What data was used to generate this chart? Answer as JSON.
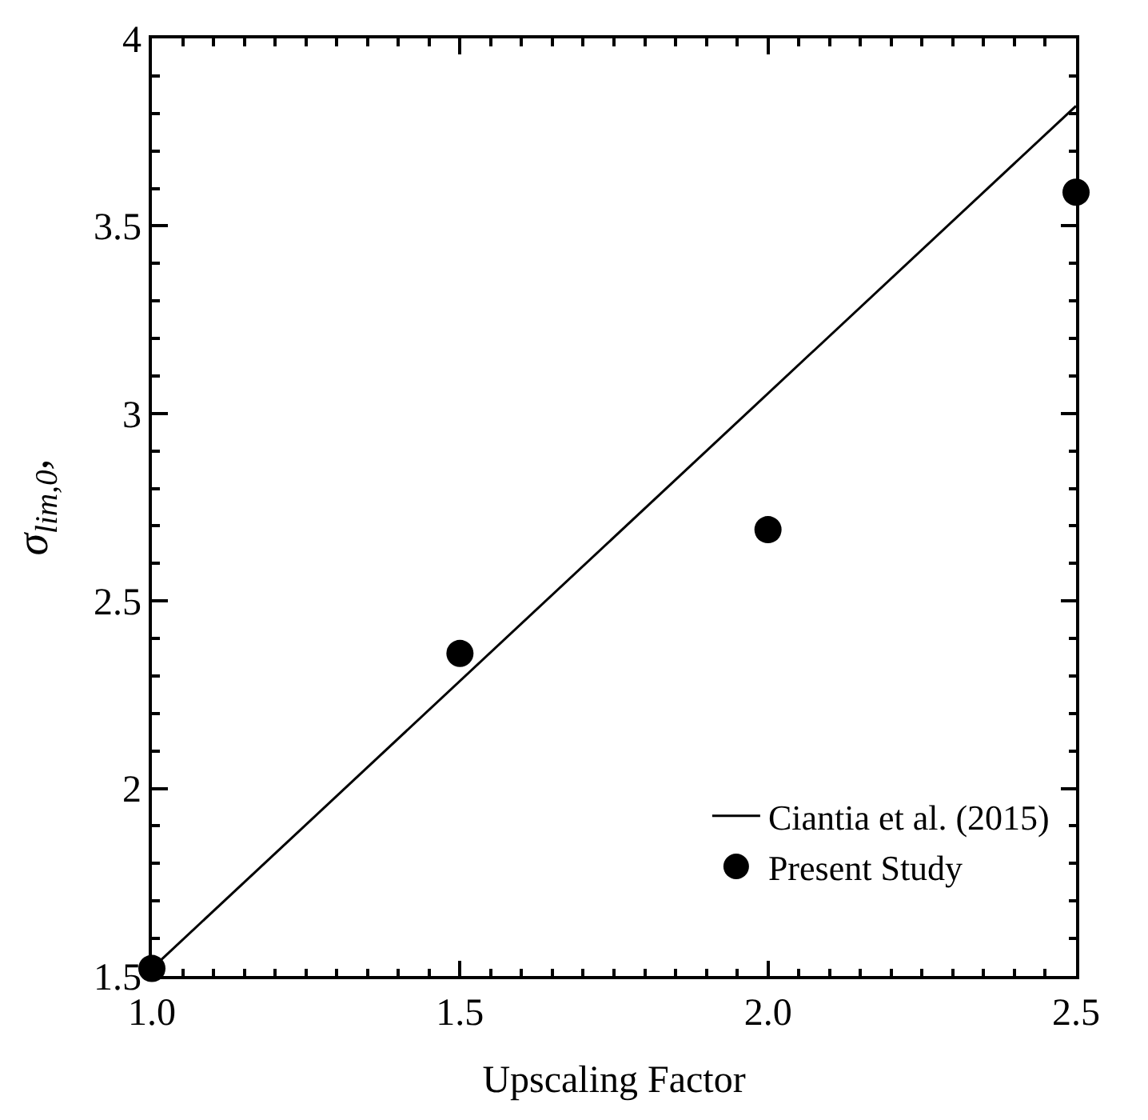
{
  "chart_data": {
    "type": "scatter",
    "xlabel": "Upscaling Factor",
    "ylabel": "σ$_{lim,0}$,",
    "x": [
      1.0,
      1.5,
      2.0,
      2.5
    ],
    "series": [
      {
        "name": "Ciantia et al. (2015)",
        "type": "line",
        "color": "#000000",
        "x": [
          1.0,
          2.5
        ],
        "values": [
          1.52,
          3.82
        ],
        "marker": "none",
        "line_style": "solid"
      },
      {
        "name": "Present Study",
        "type": "scatter",
        "color": "#000000",
        "values": [
          1.52,
          2.36,
          2.69,
          3.59
        ],
        "marker": "circle"
      }
    ],
    "xlim": [
      1.0,
      2.5
    ],
    "xticks": [
      {
        "value": 1.0,
        "label": "1.0"
      },
      {
        "value": 1.5,
        "label": "1.5"
      },
      {
        "value": 2.0,
        "label": "2.0"
      },
      {
        "value": 2.5,
        "label": "2.5"
      }
    ],
    "ylim": [
      1.5,
      4
    ],
    "yticks": [
      1.5,
      2,
      2.5,
      3,
      3.5,
      4
    ],
    "grid": false,
    "legend": "bottom right"
  }
}
